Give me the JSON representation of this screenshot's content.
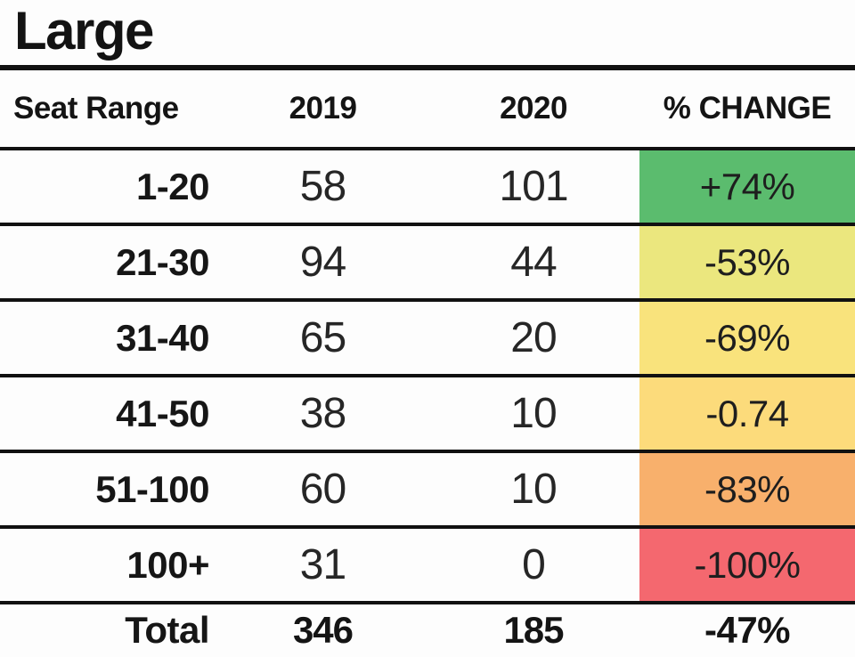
{
  "title": "Large",
  "table": {
    "columns": {
      "range": "Seat Range",
      "y2019": "2019",
      "y2020": "2020",
      "change": "% CHANGE"
    },
    "rows": [
      {
        "range": "1-20",
        "y2019": "58",
        "y2020": "101",
        "change": "+74%",
        "color": "#5bbc6e"
      },
      {
        "range": "21-30",
        "y2019": "94",
        "y2020": "44",
        "change": "-53%",
        "color": "#ebe77e"
      },
      {
        "range": "31-40",
        "y2019": "65",
        "y2020": "20",
        "change": "-69%",
        "color": "#f9e37c"
      },
      {
        "range": "41-50",
        "y2019": "38",
        "y2020": "10",
        "change": "-0.74",
        "color": "#fcdb7b"
      },
      {
        "range": "51-100",
        "y2019": "60",
        "y2020": "10",
        "change": "-83%",
        "color": "#f8b06c"
      },
      {
        "range": "100+",
        "y2019": "31",
        "y2020": "0",
        "change": "-100%",
        "color": "#f4686f"
      }
    ],
    "total": {
      "range": "Total",
      "y2019": "346",
      "y2020": "185",
      "change": "-47%"
    }
  },
  "colors": {
    "line": "#111111",
    "background": "#fdfdfd",
    "text": "#161616"
  },
  "chart_data": {
    "type": "table",
    "title": "Large",
    "columns": [
      "Seat Range",
      "2019",
      "2020",
      "% CHANGE"
    ],
    "rows": [
      [
        "1-20",
        58,
        101,
        "+74%"
      ],
      [
        "21-30",
        94,
        44,
        "-53%"
      ],
      [
        "31-40",
        65,
        20,
        "-69%"
      ],
      [
        "41-50",
        38,
        10,
        "-0.74"
      ],
      [
        "51-100",
        60,
        10,
        "-83%"
      ],
      [
        "100+",
        31,
        0,
        "-100%"
      ]
    ],
    "total_row": [
      "Total",
      346,
      185,
      "-47%"
    ],
    "change_cell_colors": [
      "#5bbc6e",
      "#ebe77e",
      "#f9e37c",
      "#fcdb7b",
      "#f8b06c",
      "#f4686f"
    ],
    "layout": "color-coded % change column, thick black row separators, bold uncolored total row"
  }
}
